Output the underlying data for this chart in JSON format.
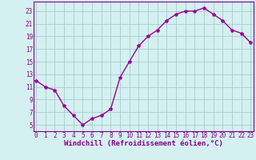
{
  "x": [
    0,
    1,
    2,
    3,
    4,
    5,
    6,
    7,
    8,
    9,
    10,
    11,
    12,
    13,
    14,
    15,
    16,
    17,
    18,
    19,
    20,
    21,
    22,
    23
  ],
  "y": [
    12,
    11,
    10.5,
    8,
    6.5,
    5,
    6,
    6.5,
    7.5,
    12.5,
    15,
    17.5,
    19,
    20,
    21.5,
    22.5,
    23,
    23,
    23.5,
    22.5,
    21.5,
    20,
    19.5,
    18
  ],
  "line_color": "#990099",
  "marker": "*",
  "marker_size": 3,
  "bg_color": "#d4f0f0",
  "grid_color": "#aacccc",
  "xlabel": "Windchill (Refroidissement éolien,°C)",
  "xlabel_fontsize": 6.5,
  "xlabel_color": "#880088",
  "ylabel_ticks": [
    5,
    7,
    9,
    11,
    13,
    15,
    17,
    19,
    21,
    23
  ],
  "xtick_labels": [
    "0",
    "1",
    "2",
    "3",
    "4",
    "5",
    "6",
    "7",
    "8",
    "9",
    "10",
    "11",
    "12",
    "13",
    "14",
    "15",
    "16",
    "17",
    "18",
    "19",
    "20",
    "21",
    "22",
    "23"
  ],
  "ylim": [
    4,
    24.5
  ],
  "xlim": [
    -0.3,
    23.3
  ],
  "tick_fontsize": 5.5,
  "tick_color": "#880088",
  "line_width": 1.0,
  "spine_color": "#880088"
}
